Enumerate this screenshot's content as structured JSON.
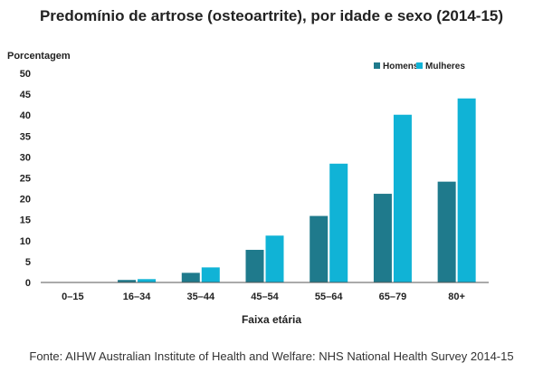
{
  "chart_data": {
    "type": "bar",
    "title": "Predomínio de artrose (osteoartrite), por idade e sexo (2014-15)",
    "ylabel": "Porcentagem",
    "xlabel": "Faixa etária",
    "categories": [
      "0–15",
      "16–34",
      "35–44",
      "45–54",
      "55–64",
      "65–79",
      "80+"
    ],
    "series": [
      {
        "name": "Homens",
        "color": "#1f7a8c",
        "values": [
          0,
          0.6,
          2.3,
          7.8,
          15.9,
          21.2,
          24.1
        ]
      },
      {
        "name": "Mulheres",
        "color": "#10b3d6",
        "values": [
          0,
          0.8,
          3.6,
          11.2,
          28.4,
          40.1,
          44.0
        ]
      }
    ],
    "ylim": [
      0,
      50
    ],
    "yticks": [
      0,
      5,
      10,
      15,
      20,
      25,
      30,
      35,
      40,
      45,
      50
    ],
    "legend_position": "top-right",
    "grid": false
  },
  "source": "Fonte: AIHW Australian Institute of Health and Welfare: NHS National Health Survey 2014-15"
}
